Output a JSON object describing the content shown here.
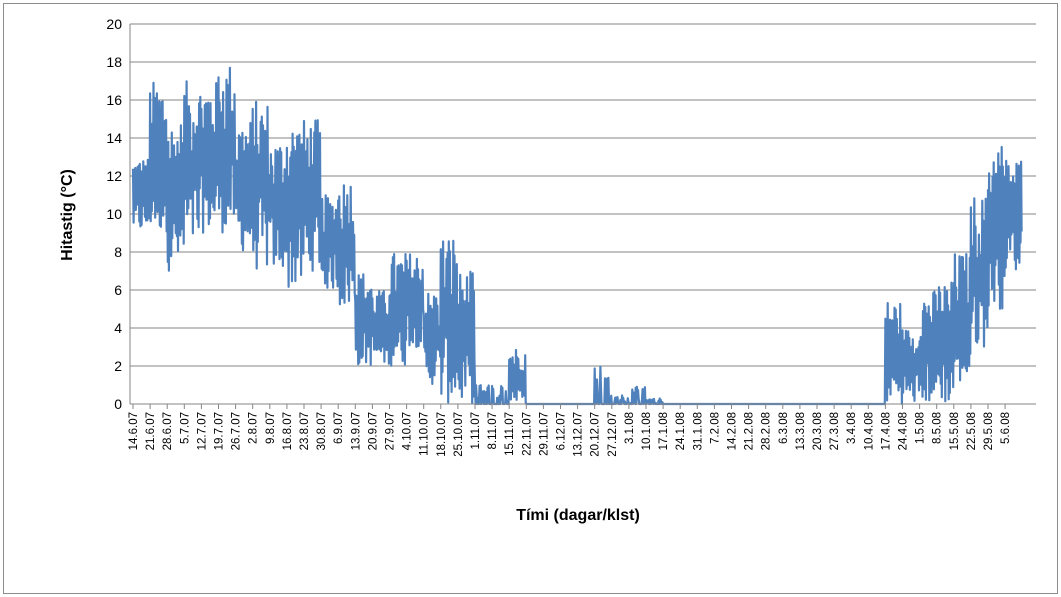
{
  "chart_data": {
    "type": "line",
    "ylabel": "Hitastig (°C)",
    "xlabel": "Tími (dagar/klst)",
    "ylim": [
      0,
      20
    ],
    "y_ticks": [
      0,
      2,
      4,
      6,
      8,
      10,
      12,
      14,
      16,
      18,
      20
    ],
    "x_ticks": [
      "14.6.07",
      "21.6.07",
      "28.6.07",
      "5.7.07",
      "12.7.07",
      "19.7.07",
      "26.7.07",
      "2.8.07",
      "9.8.07",
      "16.8.07",
      "23.8.07",
      "30.8.07",
      "6.9.07",
      "13.9.07",
      "20.9.07",
      "27.9.07",
      "4.10.07",
      "11.10.07",
      "18.10.07",
      "25.10.07",
      "1.11.07",
      "8.11.07",
      "15.11.07",
      "22.11.07",
      "29.11.07",
      "6.12.07",
      "13.12.07",
      "20.12.07",
      "27.12.07",
      "3.1.08",
      "10.1.08",
      "17.1.08",
      "24.1.08",
      "31.1.08",
      "7.2.08",
      "14.2.08",
      "21.2.08",
      "28.2.08",
      "6.3.08",
      "13.3.08",
      "20.3.08",
      "27.3.08",
      "3.4.08",
      "10.4.08",
      "17.4.08",
      "24.4.08",
      "1.5.08",
      "8.5.08",
      "15.5.08",
      "22.5.08",
      "29.5.08",
      "5.6.08"
    ],
    "grid": "horizontal",
    "legend": "none",
    "series": [
      {
        "color": "#4f81bd",
        "envelope_by_week": [
          {
            "week": "14.6.07",
            "min": 9,
            "max": 13
          },
          {
            "week": "21.6.07",
            "min": 9,
            "max": 17
          },
          {
            "week": "28.6.07",
            "min": 7,
            "max": 15
          },
          {
            "week": "5.7.07",
            "min": 8,
            "max": 17
          },
          {
            "week": "12.7.07",
            "min": 9,
            "max": 17
          },
          {
            "week": "19.7.07",
            "min": 9,
            "max": 18
          },
          {
            "week": "26.7.07",
            "min": 8,
            "max": 15
          },
          {
            "week": "2.8.07",
            "min": 7,
            "max": 16
          },
          {
            "week": "9.8.07",
            "min": 7,
            "max": 14
          },
          {
            "week": "16.8.07",
            "min": 6,
            "max": 15
          },
          {
            "week": "23.8.07",
            "min": 7,
            "max": 15
          },
          {
            "week": "30.8.07",
            "min": 6,
            "max": 11
          },
          {
            "week": "6.9.07",
            "min": 5,
            "max": 12
          },
          {
            "week": "13.9.07",
            "min": 2,
            "max": 7
          },
          {
            "week": "20.9.07",
            "min": 2,
            "max": 6
          },
          {
            "week": "27.9.07",
            "min": 2,
            "max": 8
          },
          {
            "week": "4.10.07",
            "min": 3,
            "max": 8
          },
          {
            "week": "11.10.07",
            "min": 1,
            "max": 6
          },
          {
            "week": "18.10.07",
            "min": 0,
            "max": 9
          },
          {
            "week": "25.10.07",
            "min": 0,
            "max": 7
          },
          {
            "week": "1.11.07",
            "min": 0,
            "max": 1
          },
          {
            "week": "8.11.07",
            "min": 0,
            "max": 1
          },
          {
            "week": "15.11.07",
            "min": 0,
            "max": 3
          },
          {
            "week": "22.11.07",
            "min": 0,
            "max": 0
          },
          {
            "week": "29.11.07",
            "min": 0,
            "max": 0
          },
          {
            "week": "6.12.07",
            "min": 0,
            "max": 0
          },
          {
            "week": "13.12.07",
            "min": 0,
            "max": 0
          },
          {
            "week": "20.12.07",
            "min": 0,
            "max": 2.3
          },
          {
            "week": "27.12.07",
            "min": 0,
            "max": 0.5
          },
          {
            "week": "3.1.08",
            "min": 0,
            "max": 0.9
          },
          {
            "week": "10.1.08",
            "min": 0,
            "max": 0.3
          },
          {
            "week": "17.1.08",
            "min": 0,
            "max": 0
          },
          {
            "week": "24.1.08",
            "min": 0,
            "max": 0
          },
          {
            "week": "31.1.08",
            "min": 0,
            "max": 0
          },
          {
            "week": "7.2.08",
            "min": 0,
            "max": 0
          },
          {
            "week": "14.2.08",
            "min": 0,
            "max": 0
          },
          {
            "week": "21.2.08",
            "min": 0,
            "max": 0
          },
          {
            "week": "28.2.08",
            "min": 0,
            "max": 0
          },
          {
            "week": "6.3.08",
            "min": 0,
            "max": 0
          },
          {
            "week": "13.3.08",
            "min": 0,
            "max": 0
          },
          {
            "week": "20.3.08",
            "min": 0,
            "max": 0
          },
          {
            "week": "27.3.08",
            "min": 0,
            "max": 0
          },
          {
            "week": "3.4.08",
            "min": 0,
            "max": 0
          },
          {
            "week": "10.4.08",
            "min": 0,
            "max": 0
          },
          {
            "week": "17.4.08",
            "min": 0,
            "max": 5.5
          },
          {
            "week": "24.4.08",
            "min": 0,
            "max": 4
          },
          {
            "week": "1.5.08",
            "min": 0,
            "max": 6
          },
          {
            "week": "8.5.08",
            "min": 0,
            "max": 6.5
          },
          {
            "week": "15.5.08",
            "min": 1,
            "max": 8
          },
          {
            "week": "22.5.08",
            "min": 3,
            "max": 11
          },
          {
            "week": "29.5.08",
            "min": 5,
            "max": 14
          },
          {
            "week": "5.6.08",
            "min": 7,
            "max": 13
          }
        ]
      }
    ]
  }
}
